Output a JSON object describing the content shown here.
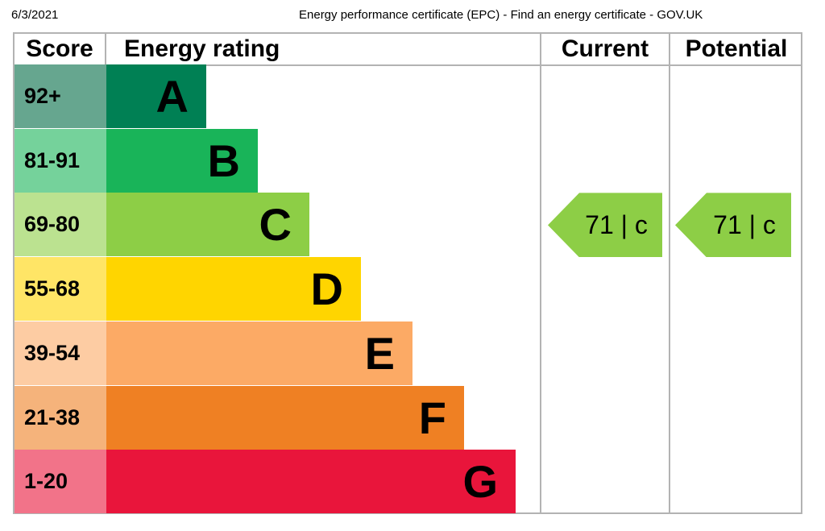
{
  "print_header": {
    "date": "6/3/2021",
    "title": "Energy performance certificate (EPC) - Find an energy certificate - GOV.UK"
  },
  "headers": {
    "score": "Score",
    "rating": "Energy rating",
    "current": "Current",
    "potential": "Potential"
  },
  "bands": [
    {
      "score": "92+",
      "letter": "A",
      "color": "#008054",
      "score_bg": "#66a68f",
      "level": 1
    },
    {
      "score": "81-91",
      "letter": "B",
      "color": "#19b459",
      "score_bg": "#75d29b",
      "level": 2
    },
    {
      "score": "69-80",
      "letter": "C",
      "color": "#8dce46",
      "score_bg": "#bbe290",
      "level": 3
    },
    {
      "score": "55-68",
      "letter": "D",
      "color": "#ffd500",
      "score_bg": "#ffe566",
      "level": 4
    },
    {
      "score": "39-54",
      "letter": "E",
      "color": "#fcaa65",
      "score_bg": "#fdcca3",
      "level": 5
    },
    {
      "score": "21-38",
      "letter": "F",
      "color": "#ef8023",
      "score_bg": "#f5b37b",
      "level": 6
    },
    {
      "score": "1-20",
      "letter": "G",
      "color": "#e9153b",
      "score_bg": "#f27389",
      "level": 7
    }
  ],
  "current": {
    "label": "71 |  c",
    "band": "C",
    "color": "#8dce46"
  },
  "potential": {
    "label": "71 |  c",
    "band": "C",
    "color": "#8dce46"
  }
}
